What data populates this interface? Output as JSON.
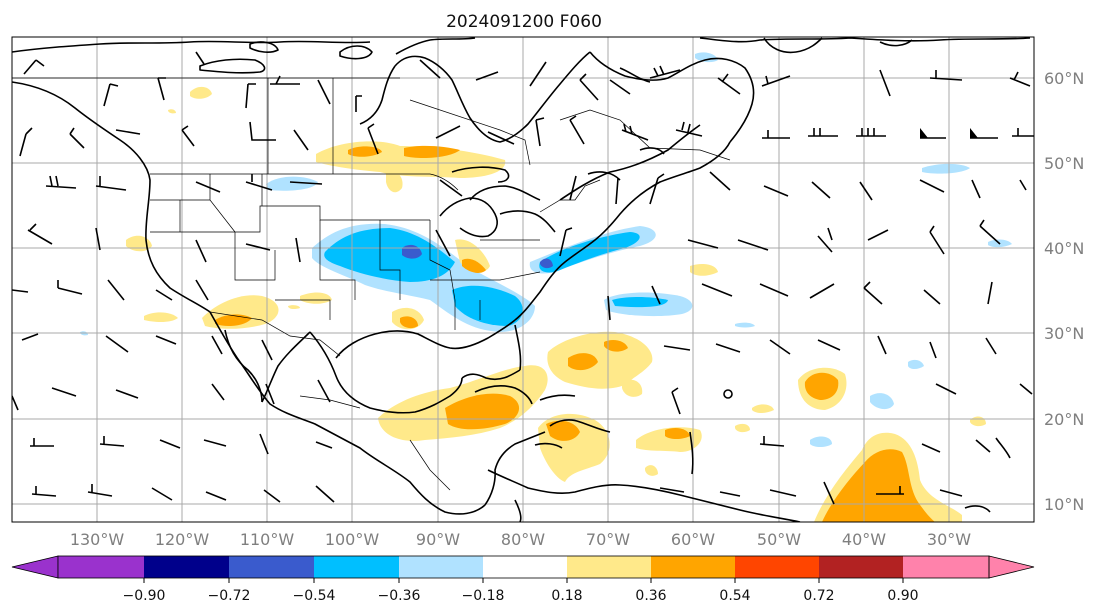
{
  "title": "2024091200 F060",
  "longitude_labels": [
    "130°W",
    "120°W",
    "110°W",
    "100°W",
    "90°W",
    "80°W",
    "70°W",
    "60°W",
    "50°W",
    "40°W",
    "30°W"
  ],
  "latitude_labels": [
    "60°N",
    "50°N",
    "40°N",
    "30°N",
    "20°N",
    "10°N"
  ],
  "colorbar": {
    "ticks": [
      "−0.90",
      "−0.72",
      "−0.54",
      "−0.36",
      "−0.18",
      "0.18",
      "0.36",
      "0.54",
      "0.72",
      "0.90"
    ],
    "colors": [
      "#9a32cd",
      "#00008b",
      "#3a5bcd",
      "#00bfff",
      "#b0e2ff",
      "#ffffff",
      "#ffe98a",
      "#ffa500",
      "#ff4500",
      "#b22222",
      "#ff82ab"
    ]
  },
  "colors": {
    "blue_light": "#b0e2ff",
    "blue": "#00bfff",
    "blue_dark": "#3a5bcd",
    "yellow": "#ffe98a",
    "orange": "#ffa500",
    "grid": "#a9a9a9",
    "label": "#7f7f7f"
  },
  "barb_field": {
    "grid": "regular lat-lon, approx. 5 degree spacing",
    "northwest_region": "northwesterly 15-25 kt",
    "east_canada": "westerly 25-40 kt",
    "north_atlantic": "westerly 40-50+ kt with pennants",
    "tropics": "easterly trades 10-15 kt"
  }
}
